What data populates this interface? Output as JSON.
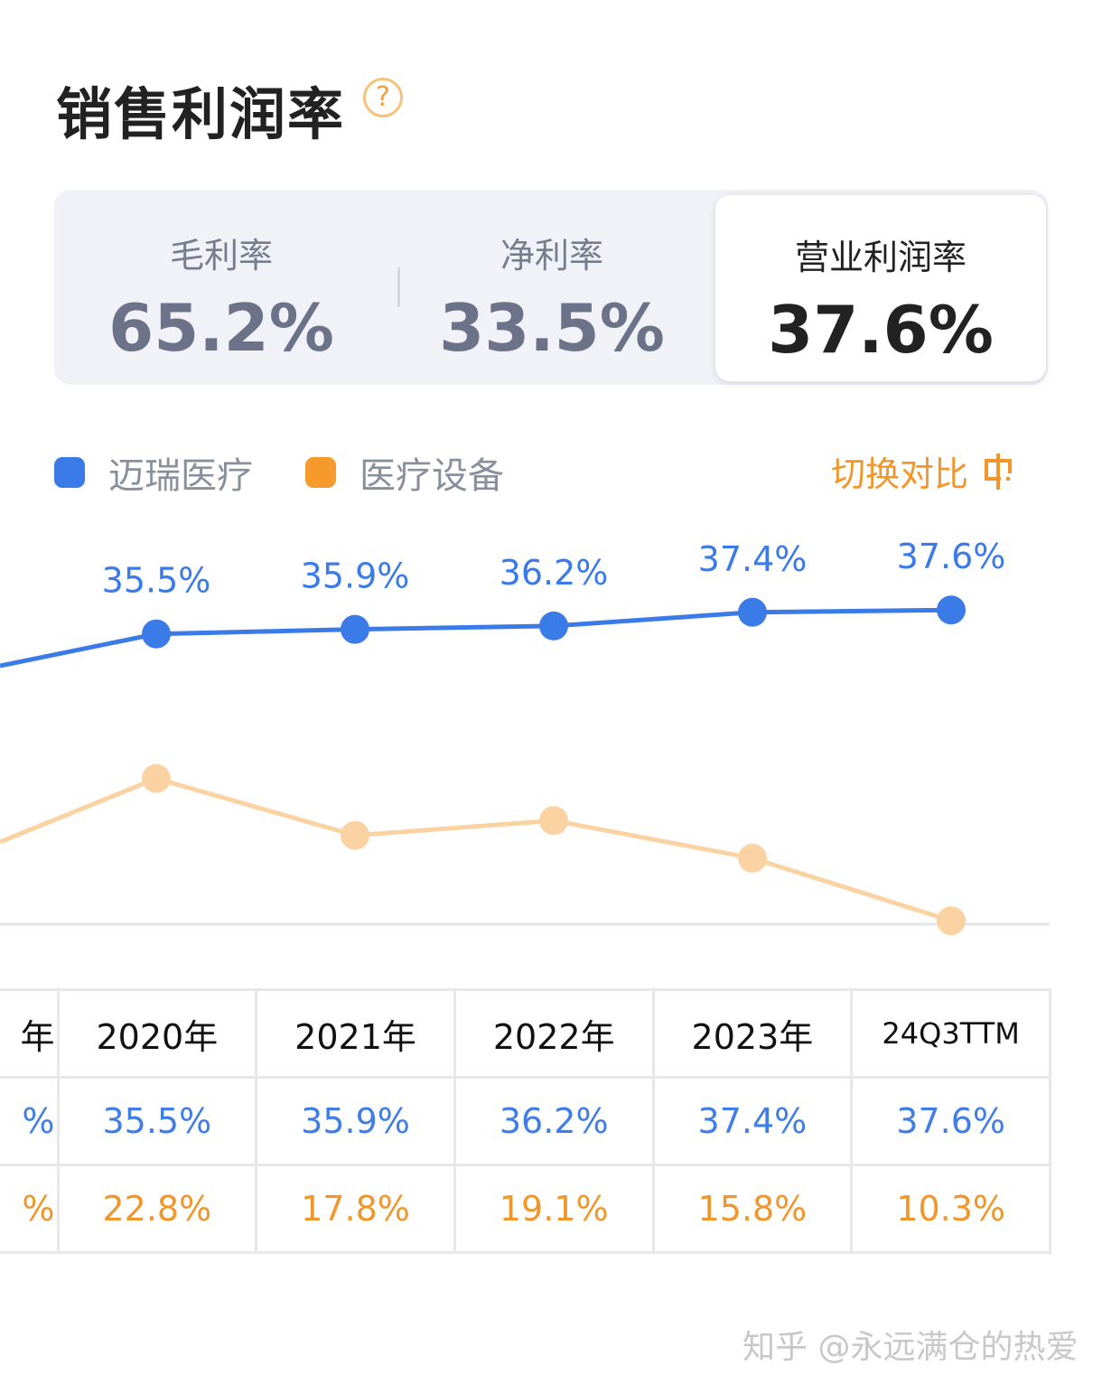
{
  "title": "销售利润率",
  "help_icon": "question-circle-icon",
  "tabs": [
    {
      "label": "毛利率",
      "value": "65.2%"
    },
    {
      "label": "净利率",
      "value": "33.5%"
    },
    {
      "label": "营业利润率",
      "value": "37.6%",
      "active": true
    }
  ],
  "switch_label": "切换对比",
  "switch_icon": "toggle-compare-icon",
  "watermark": "知乎 @永远满仓的热爱",
  "colors": {
    "blue": "#3b7be8",
    "orange": "#f79a2c",
    "orange_line": "#fbd3a2"
  },
  "chart_data": {
    "type": "line",
    "categories": [
      "2020年",
      "2021年",
      "2022年",
      "2023年",
      "24Q3TTM"
    ],
    "series": [
      {
        "name": "迈瑞医疗",
        "values": [
          35.5,
          35.9,
          36.2,
          37.4,
          37.6
        ],
        "labels": [
          "35.5%",
          "35.9%",
          "36.2%",
          "37.4%",
          "37.6%"
        ]
      },
      {
        "name": "医疗设备",
        "values": [
          22.8,
          17.8,
          19.1,
          15.8,
          10.3
        ]
      }
    ],
    "partial_column": {
      "header": "年",
      "blue": "%",
      "orange": "%"
    },
    "table": {
      "headers": [
        "2020年",
        "2021年",
        "2022年",
        "2023年",
        "24Q3TTM"
      ],
      "blue": [
        "35.5%",
        "35.9%",
        "36.2%",
        "37.4%",
        "37.6%"
      ],
      "orange": [
        "22.8%",
        "17.8%",
        "19.1%",
        "15.8%",
        "10.3%"
      ]
    }
  }
}
